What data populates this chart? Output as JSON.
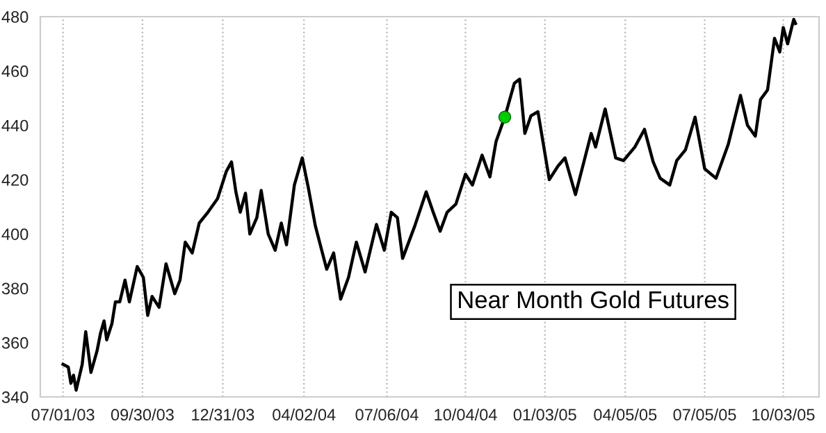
{
  "chart_data": {
    "type": "line",
    "xlim": [
      "2003-06-05",
      "2005-11-13"
    ],
    "xticks": [
      {
        "value": "2003-07-01",
        "label": "07/01/03"
      },
      {
        "value": "2003-09-30",
        "label": "09/30/03"
      },
      {
        "value": "2003-12-31",
        "label": "12/31/03"
      },
      {
        "value": "2004-04-02",
        "label": "04/02/04"
      },
      {
        "value": "2004-07-06",
        "label": "07/06/04"
      },
      {
        "value": "2004-10-04",
        "label": "10/04/04"
      },
      {
        "value": "2005-01-03",
        "label": "01/03/05"
      },
      {
        "value": "2005-04-05",
        "label": "04/05/05"
      },
      {
        "value": "2005-07-05",
        "label": "07/05/05"
      },
      {
        "value": "2005-10-03",
        "label": "10/03/05"
      }
    ],
    "ylim": [
      340,
      480
    ],
    "yticks": [
      340,
      360,
      380,
      400,
      420,
      440,
      460,
      480
    ],
    "grid": "x",
    "legend": false,
    "series": [
      {
        "name": "Near Month Gold Futures",
        "color": "#000000",
        "x": [
          "2003-07-01",
          "2003-07-07",
          "2003-07-10",
          "2003-07-13",
          "2003-07-16",
          "2003-07-23",
          "2003-07-27",
          "2003-08-02",
          "2003-08-09",
          "2003-08-13",
          "2003-08-17",
          "2003-08-20",
          "2003-08-26",
          "2003-08-30",
          "2003-09-04",
          "2003-09-10",
          "2003-09-15",
          "2003-09-24",
          "2003-10-01",
          "2003-10-06",
          "2003-10-11",
          "2003-10-19",
          "2003-10-27",
          "2003-11-06",
          "2003-11-12",
          "2003-11-18",
          "2003-11-26",
          "2003-12-04",
          "2003-12-14",
          "2003-12-25",
          "2004-01-04",
          "2004-01-10",
          "2004-01-15",
          "2004-01-20",
          "2004-01-26",
          "2004-01-31",
          "2004-02-08",
          "2004-02-13",
          "2004-02-21",
          "2004-02-29",
          "2004-03-07",
          "2004-03-13",
          "2004-03-22",
          "2004-03-31",
          "2004-04-07",
          "2004-04-15",
          "2004-04-28",
          "2004-05-06",
          "2004-05-14",
          "2004-05-23",
          "2004-06-01",
          "2004-06-11",
          "2004-06-24",
          "2004-07-03",
          "2004-07-11",
          "2004-07-18",
          "2004-07-24",
          "2004-08-07",
          "2004-08-20",
          "2004-08-28",
          "2004-09-05",
          "2004-09-13",
          "2004-09-23",
          "2004-10-04",
          "2004-10-12",
          "2004-10-23",
          "2004-11-01",
          "2004-11-08",
          "2004-11-18",
          "2004-11-29",
          "2004-12-05",
          "2004-12-11",
          "2004-12-18",
          "2004-12-26",
          "2005-01-08",
          "2005-01-18",
          "2005-01-26",
          "2005-02-07",
          "2005-02-17",
          "2005-02-25",
          "2005-03-02",
          "2005-03-13",
          "2005-03-25",
          "2005-04-03",
          "2005-04-16",
          "2005-04-27",
          "2005-05-07",
          "2005-05-15",
          "2005-05-26",
          "2005-06-03",
          "2005-06-13",
          "2005-06-24",
          "2005-07-05",
          "2005-07-18",
          "2005-08-01",
          "2005-08-15",
          "2005-08-23",
          "2005-09-01",
          "2005-09-07",
          "2005-09-15",
          "2005-09-23",
          "2005-09-29",
          "2005-10-03",
          "2005-10-08",
          "2005-10-15",
          "2005-10-17"
        ],
        "values": [
          352,
          351,
          345,
          348,
          342.5,
          352,
          364,
          349,
          357,
          363.5,
          368,
          361,
          367,
          375,
          375,
          383,
          375,
          388,
          384,
          370,
          377,
          373,
          389,
          378,
          383,
          397,
          393,
          404,
          408,
          413,
          423,
          426.5,
          415.5,
          408,
          415,
          400,
          406,
          416,
          400,
          394,
          404,
          396,
          418,
          428,
          417,
          403,
          387,
          393,
          376,
          384,
          397,
          386,
          403.5,
          394,
          408,
          406,
          391,
          403,
          415.5,
          408,
          401,
          408,
          411,
          422,
          418,
          429,
          421,
          434,
          443,
          455.5,
          457,
          437,
          443.5,
          445,
          420,
          425,
          428,
          414.5,
          427,
          437,
          432,
          446,
          428,
          427,
          432,
          438.5,
          426.5,
          420.5,
          418,
          427,
          431,
          443,
          424,
          420.5,
          433,
          451,
          440,
          436,
          449.5,
          453,
          472,
          467,
          476,
          470,
          479,
          477.5
        ]
      },
      {
        "type": "scatter",
        "color": "#00cc00",
        "marker": "circle",
        "x": [
          "2004-11-18"
        ],
        "values": [
          443
        ]
      }
    ]
  }
}
